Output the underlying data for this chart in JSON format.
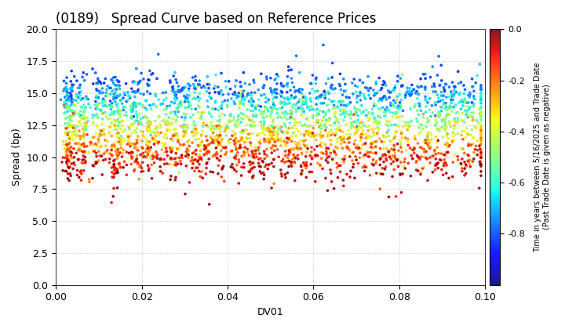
{
  "title": "(0189)   Spread Curve based on Reference Prices",
  "xlabel": "DV01",
  "ylabel": "Spread (bp)",
  "xlim": [
    0.0,
    0.1
  ],
  "ylim": [
    0.0,
    20.0
  ],
  "xticks": [
    0.0,
    0.02,
    0.04,
    0.06,
    0.08,
    0.1
  ],
  "yticks": [
    0.0,
    2.5,
    5.0,
    7.5,
    10.0,
    12.5,
    15.0,
    17.5,
    20.0
  ],
  "colorbar_label_line1": "Time in years between 5/16/2025 and Trade Date",
  "colorbar_label_line2": "(Past Trade Date is given as negative)",
  "colorbar_vmin": -1.0,
  "colorbar_vmax": 0.0,
  "colorbar_ticks": [
    0.0,
    -0.2,
    -0.4,
    -0.6,
    -0.8
  ],
  "background_color": "#ffffff",
  "grid_color": "#999999",
  "title_fontsize": 12,
  "axis_fontsize": 9,
  "seed": 123,
  "cluster_centers": [
    0.003,
    0.006,
    0.01,
    0.014,
    0.018,
    0.022,
    0.027,
    0.032,
    0.037,
    0.042,
    0.047,
    0.052,
    0.057,
    0.062,
    0.067,
    0.072,
    0.077,
    0.082,
    0.087,
    0.092,
    0.096
  ],
  "point_size": 7,
  "alpha": 0.9
}
